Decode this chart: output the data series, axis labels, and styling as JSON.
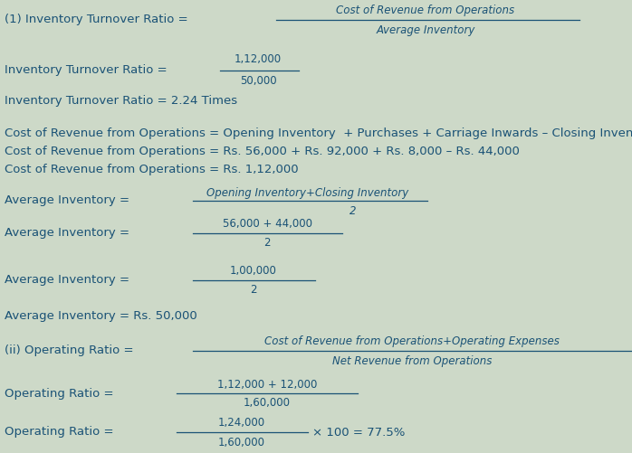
{
  "bg_color": "#cdd9c8",
  "text_color": "#1a5276",
  "fig_width": 6.98,
  "fig_height": 5.01,
  "dpi": 100
}
